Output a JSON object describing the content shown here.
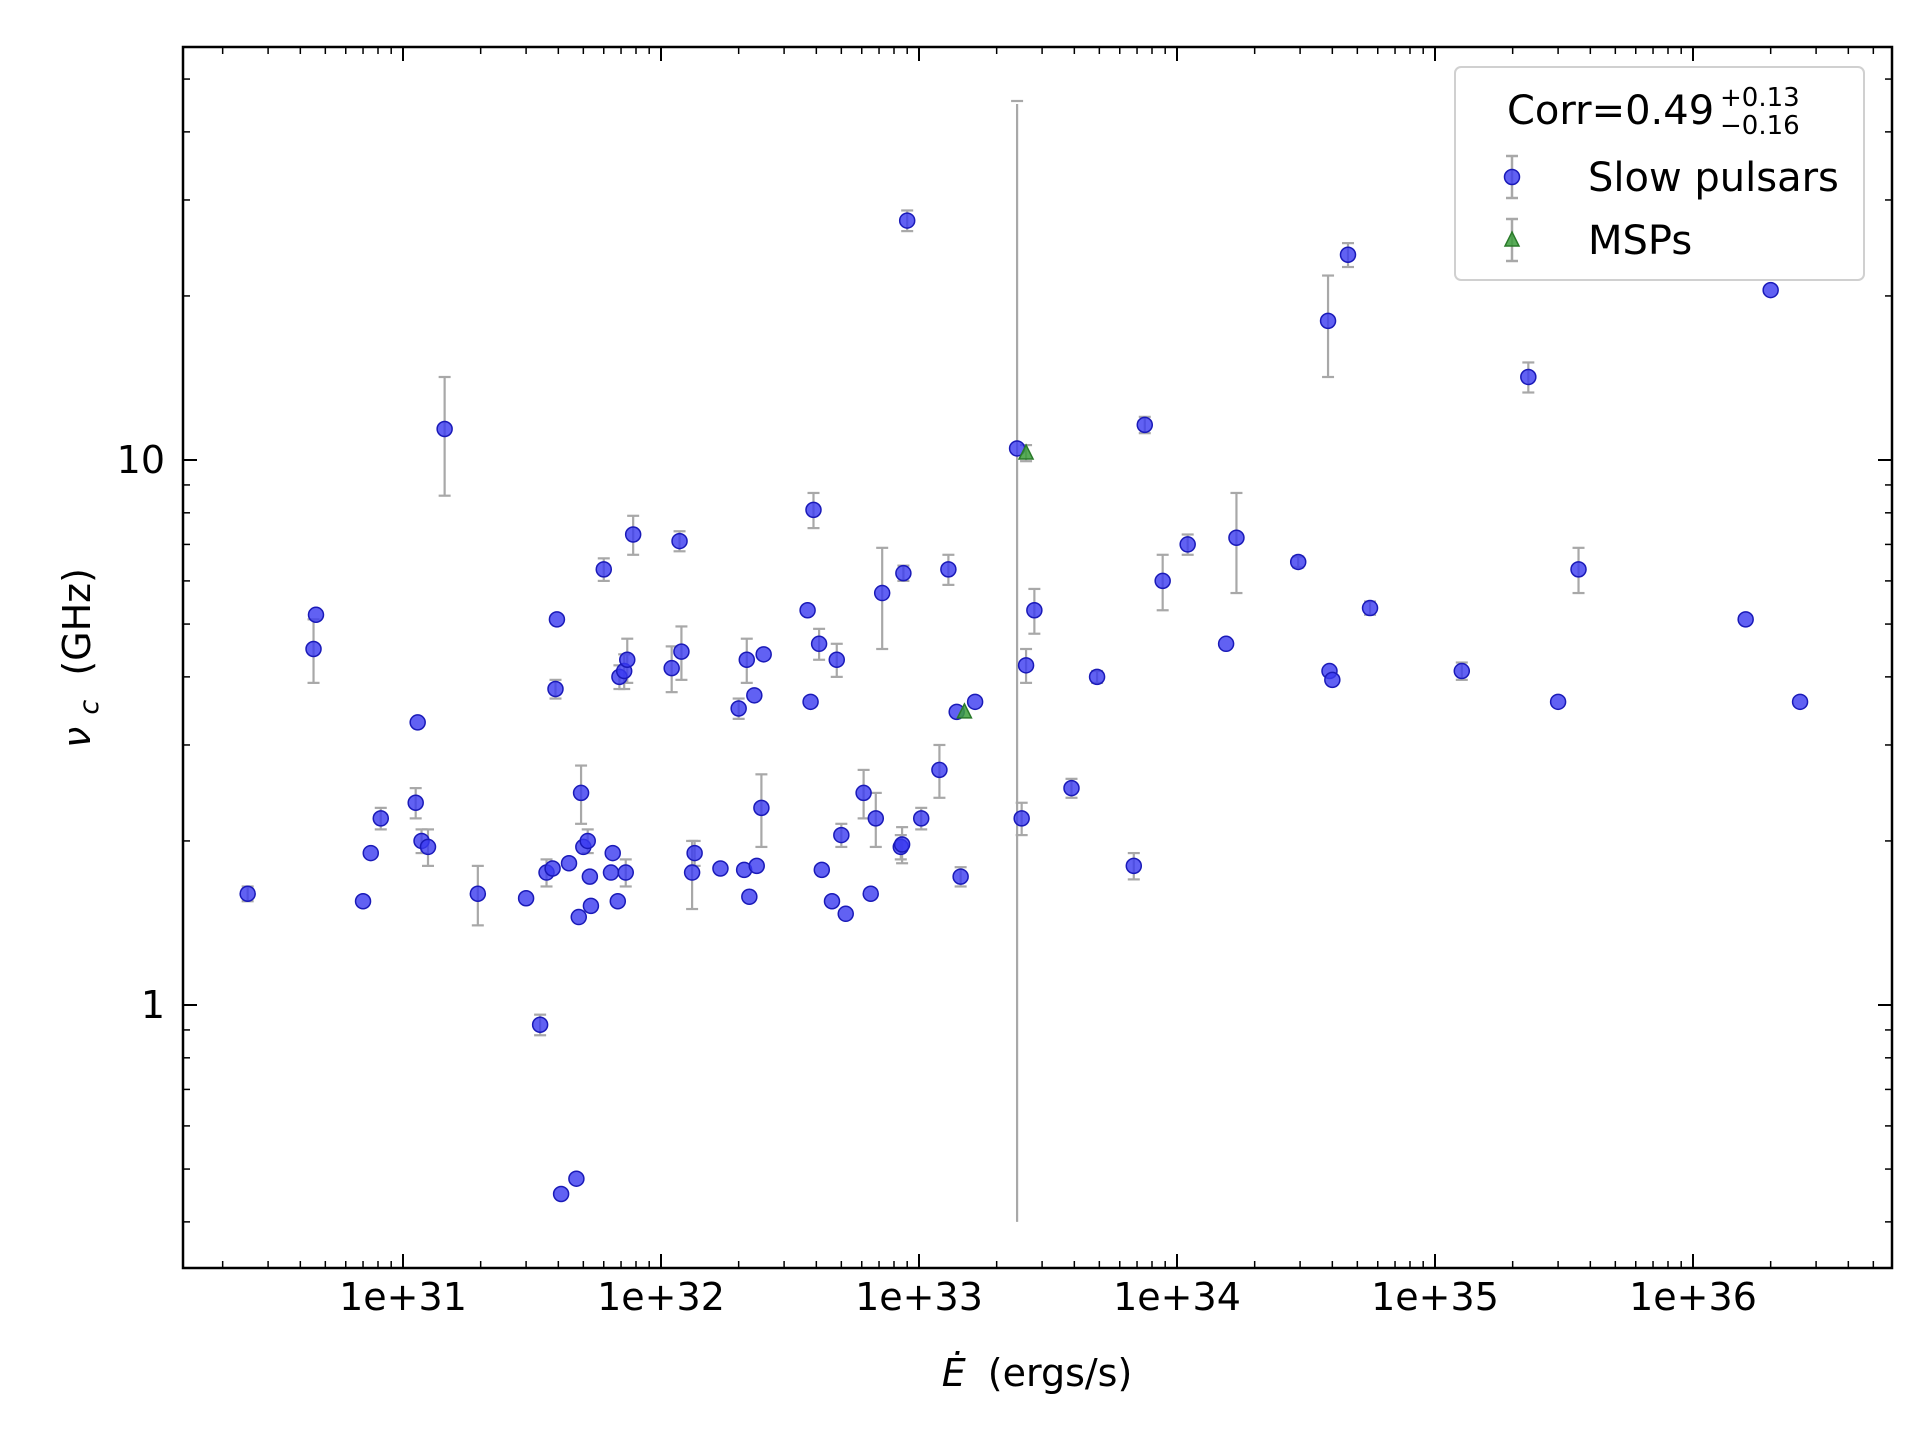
{
  "chart_data": {
    "type": "scatter",
    "xlabel_symbol": "Ė",
    "xlabel_unit": "(ergs/s)",
    "ylabel_symbol": "ν",
    "ylabel_sub": "c",
    "ylabel_unit": "(GHz)",
    "xscale": "log",
    "yscale": "log",
    "xlim": [
      1.3e+30,
      5e+36
    ],
    "ylim": [
      0.48,
      23
    ],
    "x_ticks": [
      {
        "value": 1e+31,
        "label": "1e+31"
      },
      {
        "value": 1e+32,
        "label": "1e+32"
      },
      {
        "value": 1e+33,
        "label": "1e+33"
      },
      {
        "value": 1e+34,
        "label": "1e+34"
      },
      {
        "value": 1e+35,
        "label": "1e+35"
      },
      {
        "value": 1e+36,
        "label": "1e+36"
      }
    ],
    "y_ticks": [
      {
        "value": 1,
        "label": "1"
      },
      {
        "value": 10,
        "label": "10"
      }
    ],
    "grid": false,
    "legend": {
      "placement": "top-right",
      "title_base": "Corr=0.49",
      "title_sup": "+0.13",
      "title_sub": "−0.16",
      "entries": [
        "Slow pulsars",
        "MSPs"
      ]
    },
    "colors": {
      "slow": "#3a3af0",
      "slow_edge": "#1a1ab8",
      "msp": "#3c9e3c",
      "msp_edge": "#2a7a2a",
      "errorbar": "#a8a8a8"
    },
    "series": [
      {
        "name": "Slow pulsars",
        "marker": "circle",
        "points": [
          [
            2.5e+30,
            1.6,
            0.05
          ],
          [
            4.5e+30,
            4.5,
            0.6
          ],
          [
            4.6e+30,
            5.2,
            0
          ],
          [
            7e+30,
            1.55,
            0
          ],
          [
            7.5e+30,
            1.9,
            0
          ],
          [
            8.2e+30,
            2.2,
            0.1
          ],
          [
            1.12e+31,
            2.35,
            0.15
          ],
          [
            1.14e+31,
            3.3,
            0
          ],
          [
            1.18e+31,
            2.0,
            0.1
          ],
          [
            1.25e+31,
            1.95,
            0.15
          ],
          [
            1.45e+31,
            11.4,
            2.8
          ],
          [
            1.95e+31,
            1.6,
            0.2
          ],
          [
            3e+31,
            1.57,
            0
          ],
          [
            3.4e+31,
            0.92,
            0.04
          ],
          [
            3.6e+31,
            1.75,
            0.1
          ],
          [
            3.8e+31,
            1.78,
            0
          ],
          [
            3.9e+31,
            3.8,
            0.15
          ],
          [
            3.95e+31,
            5.1,
            0
          ],
          [
            4.1e+31,
            0.45,
            0
          ],
          [
            4.4e+31,
            1.82,
            0
          ],
          [
            4.7e+31,
            0.48,
            0
          ],
          [
            4.8e+31,
            1.45,
            0
          ],
          [
            4.9e+31,
            2.45,
            0.3
          ],
          [
            5e+31,
            1.95,
            0
          ],
          [
            5.2e+31,
            2.0,
            0.1
          ],
          [
            5.3e+31,
            1.72,
            0
          ],
          [
            5.35e+31,
            1.52,
            0
          ],
          [
            6e+31,
            6.3,
            0.3
          ],
          [
            6.4e+31,
            1.75,
            0
          ],
          [
            6.5e+31,
            1.9,
            0
          ],
          [
            6.8e+31,
            1.55,
            0
          ],
          [
            6.9e+31,
            4.0,
            0.2
          ],
          [
            7.2e+31,
            4.1,
            0.3
          ],
          [
            7.3e+31,
            1.75,
            0.1
          ],
          [
            7.4e+31,
            4.3,
            0.4
          ],
          [
            7.8e+31,
            7.3,
            0.6
          ],
          [
            1.1e+32,
            4.15,
            0.4
          ],
          [
            1.18e+32,
            7.1,
            0.3
          ],
          [
            1.2e+32,
            4.45,
            0.5
          ],
          [
            1.32e+32,
            1.75,
            0.25
          ],
          [
            1.35e+32,
            1.9,
            0.1
          ],
          [
            1.7e+32,
            1.78,
            0
          ],
          [
            2e+32,
            3.5,
            0.15
          ],
          [
            2.1e+32,
            1.77,
            0
          ],
          [
            2.15e+32,
            4.3,
            0.4
          ],
          [
            2.2e+32,
            1.58,
            0
          ],
          [
            2.3e+32,
            3.7,
            0
          ],
          [
            2.35e+32,
            1.8,
            0
          ],
          [
            2.45e+32,
            2.3,
            0.35
          ],
          [
            2.5e+32,
            4.4,
            0
          ],
          [
            3.7e+32,
            5.3,
            0
          ],
          [
            3.8e+32,
            3.6,
            0
          ],
          [
            3.9e+32,
            8.1,
            0.6
          ],
          [
            4.1e+32,
            4.6,
            0.3
          ],
          [
            4.2e+32,
            1.77,
            0
          ],
          [
            4.6e+32,
            1.55,
            0
          ],
          [
            4.8e+32,
            4.3,
            0.3
          ],
          [
            5e+32,
            2.05,
            0.1
          ],
          [
            5.2e+32,
            1.47,
            0
          ],
          [
            6.1e+32,
            2.45,
            0.25
          ],
          [
            6.5e+32,
            1.6,
            0
          ],
          [
            6.8e+32,
            2.2,
            0.25
          ],
          [
            7.2e+32,
            5.7,
            1.2
          ],
          [
            8.5e+32,
            1.95,
            0.1
          ],
          [
            8.6e+32,
            1.97,
            0.15
          ],
          [
            8.7e+32,
            6.2,
            0.2
          ],
          [
            9e+32,
            27.5,
            1.2
          ],
          [
            1.02e+33,
            2.2,
            0.1
          ],
          [
            1.2e+33,
            2.7,
            0.3
          ],
          [
            1.3e+33,
            6.3,
            0.4
          ],
          [
            1.4e+33,
            3.45,
            0
          ],
          [
            1.45e+33,
            1.72,
            0.07
          ],
          [
            1.65e+33,
            3.6,
            0
          ],
          [
            2.4e+33,
            10.5,
            0
          ],
          [
            2.5e+33,
            2.2,
            0.15
          ],
          [
            2.6e+33,
            4.2,
            0.3
          ],
          [
            2.8e+33,
            5.3,
            0.5
          ],
          [
            3.9e+33,
            2.5,
            0.1
          ],
          [
            4.9e+33,
            4.0,
            0.1
          ],
          [
            6.8e+33,
            1.8,
            0.1
          ],
          [
            7.5e+33,
            11.6,
            0.4
          ],
          [
            8.8e+33,
            6.0,
            0.7
          ],
          [
            1.1e+34,
            7.0,
            0.3
          ],
          [
            1.55e+34,
            4.6,
            0
          ],
          [
            1.7e+34,
            7.2,
            1.5
          ],
          [
            2.95e+34,
            6.5,
            0.15
          ],
          [
            3.85e+34,
            18.0,
            3.8
          ],
          [
            3.9e+34,
            4.1,
            0
          ],
          [
            4e+34,
            3.95,
            0
          ],
          [
            4.6e+34,
            23.8,
            1.2
          ],
          [
            5.6e+34,
            5.35,
            0.15
          ],
          [
            1.27e+35,
            4.1,
            0.15
          ],
          [
            2.3e+35,
            14.2,
            0.9
          ],
          [
            3e+35,
            3.6,
            0
          ],
          [
            3.6e+35,
            6.3,
            0.6
          ],
          [
            1.6e+36,
            5.1,
            0
          ],
          [
            2e+36,
            20.5,
            0
          ],
          [
            2.6e+36,
            3.6,
            0
          ]
        ]
      },
      {
        "name": "MSPs",
        "marker": "triangle",
        "points": [
          [
            1.5e+33,
            3.45,
            0
          ],
          [
            2.6e+33,
            10.3,
            0.35
          ]
        ]
      }
    ],
    "special_errorbars": [
      {
        "x": 2.4e+33,
        "y_low": 0.4,
        "y_high": 45
      }
    ]
  }
}
